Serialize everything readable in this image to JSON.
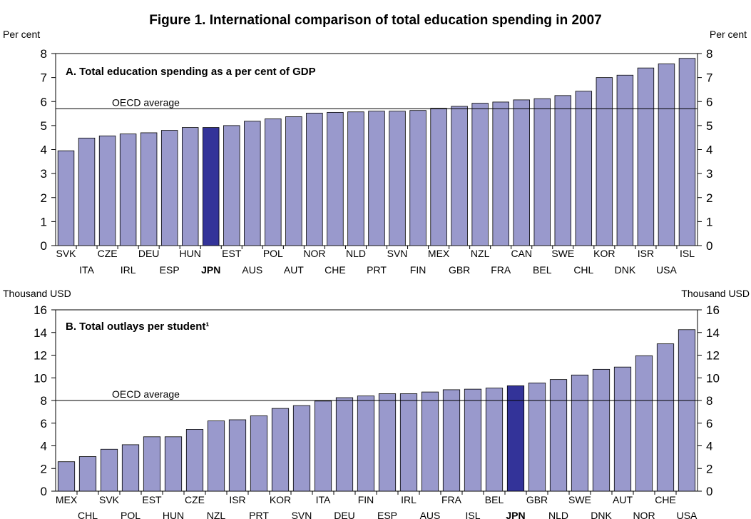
{
  "title": "Figure 1. International comparison of total education spending in 2007",
  "colors": {
    "bar": "#9999cc",
    "highlight": "#333399",
    "stroke": "#000000"
  },
  "chart_data": [
    {
      "type": "bar",
      "title": "A. Total education spending as a per cent of GDP",
      "unit_left": "Per cent",
      "unit_right": "Per cent",
      "ylim": [
        0,
        8
      ],
      "yticks": [
        0,
        1,
        2,
        3,
        4,
        5,
        6,
        7,
        8
      ],
      "grid": false,
      "average_label": "OECD average",
      "average": 5.7,
      "highlight": "JPN",
      "categories": [
        "SVK",
        "ITA",
        "CZE",
        "IRL",
        "DEU",
        "ESP",
        "HUN",
        "JPN",
        "EST",
        "AUS",
        "POL",
        "AUT",
        "NOR",
        "CHE",
        "NLD",
        "PRT",
        "SVN",
        "FIN",
        "MEX",
        "GBR",
        "NZL",
        "FRA",
        "CAN",
        "BEL",
        "SWE",
        "CHL",
        "KOR",
        "DNK",
        "ISR",
        "USA",
        "ISL"
      ],
      "values": [
        3.95,
        4.48,
        4.57,
        4.65,
        4.7,
        4.8,
        4.92,
        4.92,
        5.0,
        5.18,
        5.28,
        5.37,
        5.52,
        5.55,
        5.57,
        5.6,
        5.6,
        5.63,
        5.72,
        5.8,
        5.93,
        5.98,
        6.07,
        6.12,
        6.25,
        6.43,
        7.0,
        7.1,
        7.4,
        7.57,
        7.8
      ]
    },
    {
      "type": "bar",
      "title": "B. Total outlays per student¹",
      "unit_left": "Thousand USD",
      "unit_right": "Thousand USD",
      "ylim": [
        0,
        16
      ],
      "yticks": [
        0,
        2,
        4,
        6,
        8,
        10,
        12,
        14,
        16
      ],
      "grid": false,
      "average_label": "OECD average",
      "average": 8.0,
      "highlight": "JPN",
      "categories": [
        "MEX",
        "CHL",
        "SVK",
        "POL",
        "EST",
        "HUN",
        "CZE",
        "NZL",
        "ISR",
        "PRT",
        "KOR",
        "SVN",
        "ITA",
        "DEU",
        "FIN",
        "ESP",
        "IRL",
        "AUS",
        "FRA",
        "ISL",
        "BEL",
        "JPN",
        "GBR",
        "NLD",
        "SWE",
        "DNK",
        "AUT",
        "NOR",
        "CHE",
        "USA"
      ],
      "values": [
        2.6,
        3.05,
        3.7,
        4.1,
        4.8,
        4.8,
        5.45,
        6.2,
        6.3,
        6.65,
        7.3,
        7.55,
        7.95,
        8.25,
        8.4,
        8.6,
        8.6,
        8.75,
        8.95,
        9.0,
        9.1,
        9.3,
        9.55,
        9.85,
        10.25,
        10.75,
        10.95,
        11.95,
        13.0,
        14.25
      ]
    }
  ]
}
